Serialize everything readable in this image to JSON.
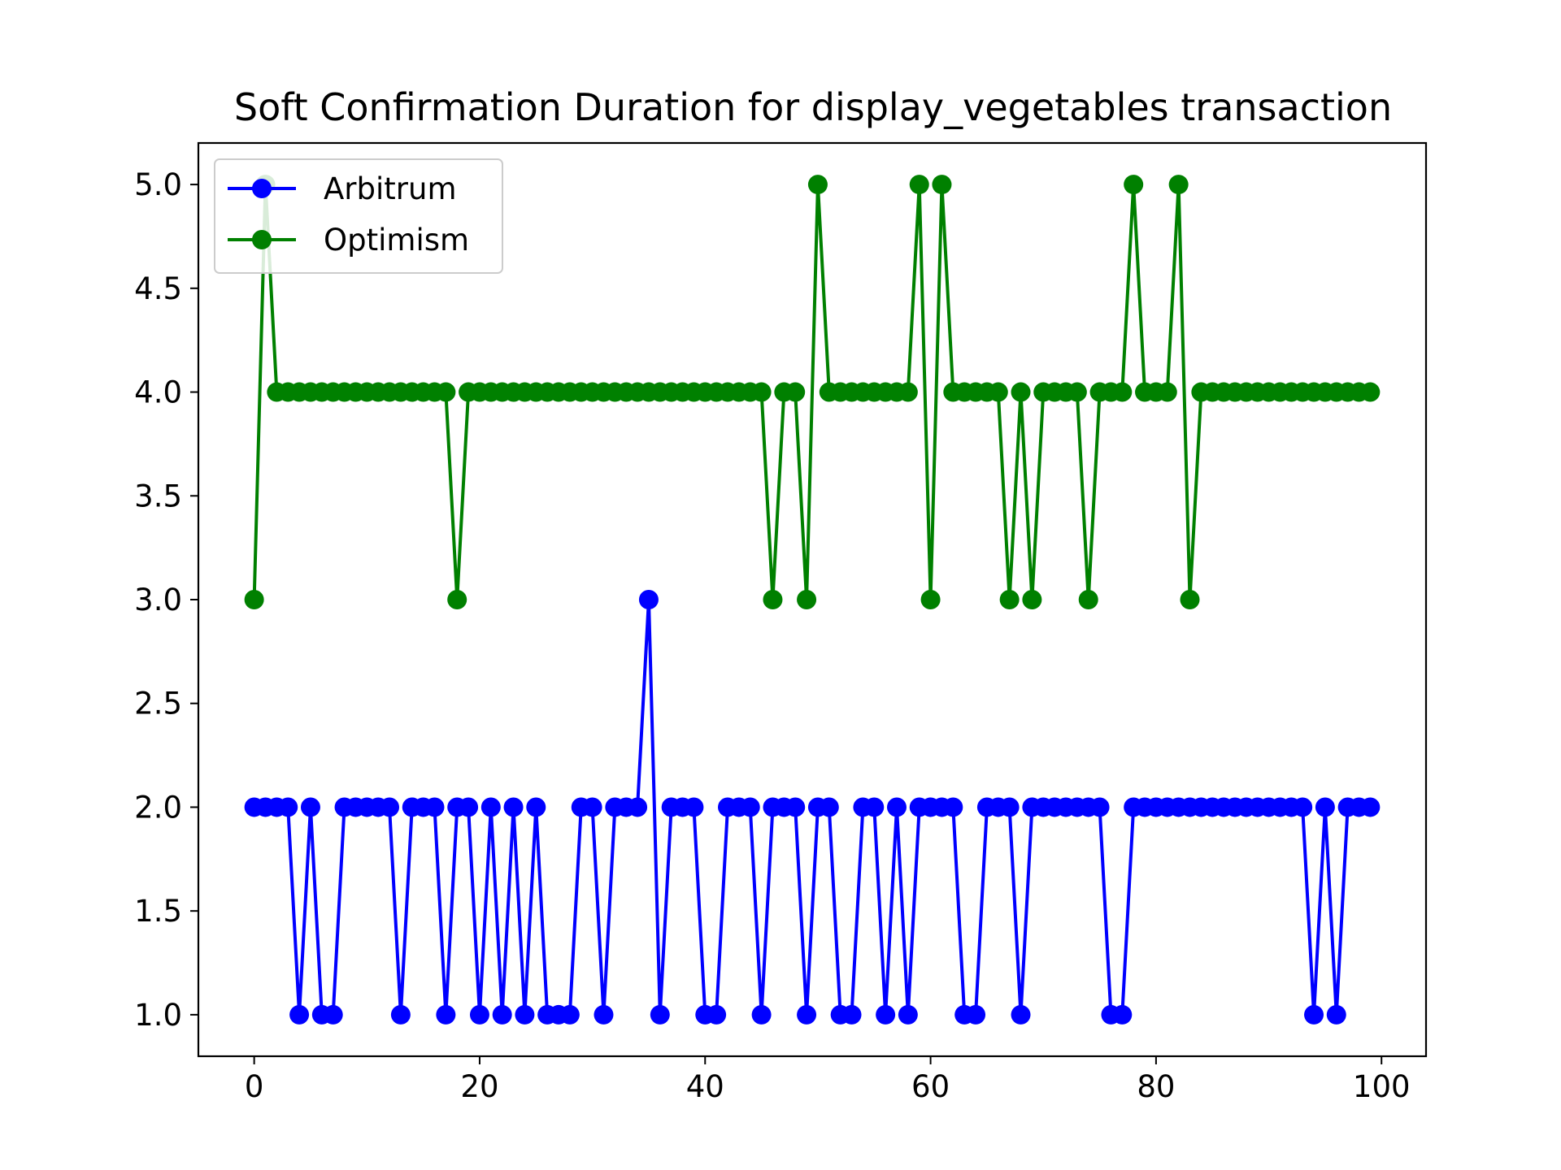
{
  "chart_data": {
    "type": "line",
    "title": "Soft Confirmation Duration for display_vegetables transaction",
    "xlabel": "",
    "ylabel": "",
    "xlim": [
      -4.95,
      103.95
    ],
    "ylim": [
      0.8,
      5.2
    ],
    "xticks": [
      "0",
      "20",
      "40",
      "60",
      "80",
      "100"
    ],
    "yticks": [
      "1.0",
      "1.5",
      "2.0",
      "2.5",
      "3.0",
      "3.5",
      "4.0",
      "4.5",
      "5.0"
    ],
    "grid": false,
    "legend_position": "upper-left",
    "x": [
      0,
      1,
      2,
      3,
      4,
      5,
      6,
      7,
      8,
      9,
      10,
      11,
      12,
      13,
      14,
      15,
      16,
      17,
      18,
      19,
      20,
      21,
      22,
      23,
      24,
      25,
      26,
      27,
      28,
      29,
      30,
      31,
      32,
      33,
      34,
      35,
      36,
      37,
      38,
      39,
      40,
      41,
      42,
      43,
      44,
      45,
      46,
      47,
      48,
      49,
      50,
      51,
      52,
      53,
      54,
      55,
      56,
      57,
      58,
      59,
      60,
      61,
      62,
      63,
      64,
      65,
      66,
      67,
      68,
      69,
      70,
      71,
      72,
      73,
      74,
      75,
      76,
      77,
      78,
      79,
      80,
      81,
      82,
      83,
      84,
      85,
      86,
      87,
      88,
      89,
      90,
      91,
      92,
      93,
      94,
      95,
      96,
      97,
      98,
      99
    ],
    "series": [
      {
        "name": "Arbitrum",
        "color": "#0000ff",
        "values": [
          2,
          2,
          2,
          2,
          1,
          2,
          1,
          1,
          2,
          2,
          2,
          2,
          2,
          1,
          2,
          2,
          2,
          1,
          2,
          2,
          1,
          2,
          1,
          2,
          1,
          2,
          1,
          1,
          1,
          2,
          2,
          1,
          2,
          2,
          2,
          3,
          1,
          2,
          2,
          2,
          1,
          1,
          2,
          2,
          2,
          1,
          2,
          2,
          2,
          1,
          2,
          2,
          1,
          1,
          2,
          2,
          1,
          2,
          1,
          2,
          2,
          2,
          2,
          1,
          1,
          2,
          2,
          2,
          1,
          2,
          2,
          2,
          2,
          2,
          2,
          2,
          1,
          1,
          2,
          2,
          2,
          2,
          2,
          2,
          2,
          2,
          2,
          2,
          2,
          2,
          2,
          2,
          2,
          2,
          1,
          2,
          1,
          2,
          2,
          2
        ]
      },
      {
        "name": "Optimism",
        "color": "#008000",
        "values": [
          3,
          5,
          4,
          4,
          4,
          4,
          4,
          4,
          4,
          4,
          4,
          4,
          4,
          4,
          4,
          4,
          4,
          4,
          3,
          4,
          4,
          4,
          4,
          4,
          4,
          4,
          4,
          4,
          4,
          4,
          4,
          4,
          4,
          4,
          4,
          4,
          4,
          4,
          4,
          4,
          4,
          4,
          4,
          4,
          4,
          4,
          3,
          4,
          4,
          3,
          5,
          4,
          4,
          4,
          4,
          4,
          4,
          4,
          4,
          5,
          3,
          5,
          4,
          4,
          4,
          4,
          4,
          3,
          4,
          3,
          4,
          4,
          4,
          4,
          3,
          4,
          4,
          4,
          5,
          4,
          4,
          4,
          5,
          3,
          4,
          4,
          4,
          4,
          4,
          4,
          4,
          4,
          4,
          4,
          4,
          4,
          4,
          4,
          4,
          4
        ]
      }
    ]
  }
}
